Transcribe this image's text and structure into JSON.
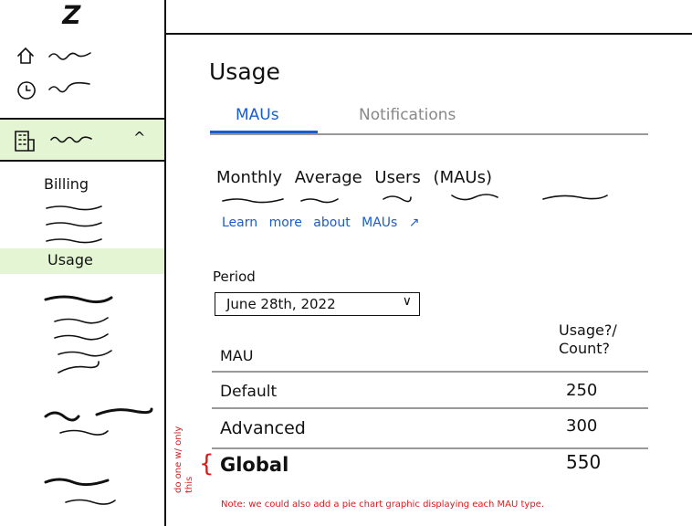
{
  "sidebar": {
    "logo": "Z",
    "items": [
      {
        "icon": "home-icon"
      },
      {
        "icon": "clock-icon"
      },
      {
        "icon": "building-icon",
        "expanded": true,
        "chevron": "^"
      }
    ],
    "submenu": [
      "Billing",
      "Usage"
    ],
    "active": "Usage"
  },
  "page": {
    "title": "Usage",
    "tabs": [
      {
        "label": "MAUs",
        "active": true
      },
      {
        "label": "Notifications",
        "active": false
      }
    ],
    "description": "Monthly Average Users (MAUs)",
    "learn_more": "Learn more about MAUs",
    "period_label": "Period",
    "period_value": "June 28th, 2022",
    "table": {
      "headers": [
        "MAU",
        "Usage?/ Count?"
      ],
      "rows": [
        {
          "name": "Default",
          "count": "250"
        },
        {
          "name": "Advanced",
          "count": "300"
        },
        {
          "name": "Global",
          "count": "550"
        }
      ]
    }
  },
  "annotations": {
    "side_note": "do one w/ only this",
    "note": "Note: we could also add a pie chart graphic displaying each MAU type."
  },
  "colors": {
    "accent": "#1a5ccf",
    "highlight": "#e4f5d4",
    "annotation": "#e01818"
  }
}
